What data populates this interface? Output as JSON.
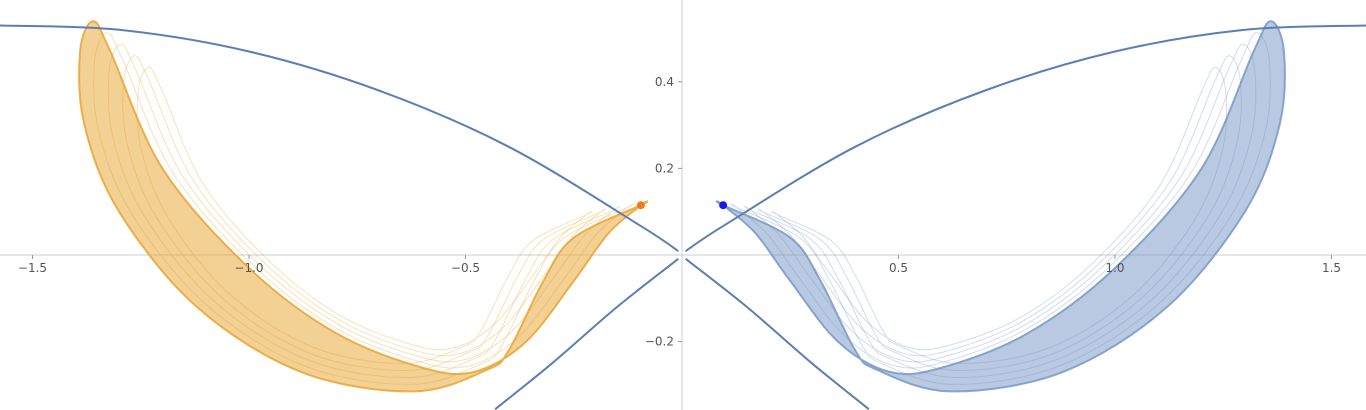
{
  "chart_data": {
    "type": "line",
    "title": "",
    "xlabel": "",
    "ylabel": "",
    "xlim": [
      -1.58,
      1.58
    ],
    "ylim": [
      -0.355,
      0.54
    ],
    "grid": false,
    "legend": "none",
    "x_ticks": [
      {
        "value": -1.5,
        "label": "−1.5"
      },
      {
        "value": -1.0,
        "label": "−1.0"
      },
      {
        "value": -0.5,
        "label": "−0.5"
      },
      {
        "value": 0.5,
        "label": "0.5"
      },
      {
        "value": 1.0,
        "label": "1.0"
      },
      {
        "value": 1.5,
        "label": "1.5"
      }
    ],
    "y_ticks": [
      {
        "value": 0.4,
        "label": "0.4"
      },
      {
        "value": 0.2,
        "label": "0.2"
      },
      {
        "value": -0.2,
        "label": "−0.2"
      }
    ],
    "colors": {
      "curve": "#5b7fb5",
      "left_band": "#e9a93a",
      "right_band": "#7e9cc8",
      "left_point": "#f07a1a",
      "right_point": "#1a1ae6",
      "axis": "#cccccc"
    },
    "boundary_curves": [
      {
        "side": "left",
        "x": [
          -1.58,
          -1.3,
          -1.0,
          -0.7,
          -0.4,
          -0.1,
          -0.01
        ],
        "y": [
          0.53,
          0.52,
          0.47,
          0.38,
          0.25,
          0.07,
          0.01
        ]
      },
      {
        "side": "right",
        "x": [
          0.01,
          0.1,
          0.4,
          0.7,
          1.0,
          1.3,
          1.58
        ],
        "y": [
          0.01,
          0.07,
          0.25,
          0.38,
          0.47,
          0.52,
          0.53
        ]
      },
      {
        "side": "left-lower",
        "x": [
          -0.43,
          -0.3,
          -0.15,
          -0.01
        ],
        "y": [
          -0.355,
          -0.25,
          -0.12,
          -0.01
        ]
      },
      {
        "side": "right-lower",
        "x": [
          0.01,
          0.15,
          0.3,
          0.43
        ],
        "y": [
          -0.01,
          -0.12,
          -0.25,
          -0.355
        ]
      }
    ],
    "series": [
      {
        "side": "left",
        "x": [
          -0.095,
          -0.25,
          -0.32,
          -0.4,
          -0.45,
          -0.62,
          -0.88,
          -1.12,
          -1.3,
          -1.38,
          -1.39,
          -1.36,
          -1.32,
          -1.2,
          -1.0,
          -0.8,
          -0.6,
          -0.48,
          -0.36,
          -0.25,
          -0.17,
          -0.095
        ],
        "y": [
          0.115,
          0.04,
          -0.06,
          -0.22,
          -0.265,
          -0.315,
          -0.27,
          -0.12,
          0.1,
          0.3,
          0.47,
          0.54,
          0.47,
          0.2,
          -0.03,
          -0.18,
          -0.26,
          -0.27,
          -0.2,
          -0.06,
          0.05,
          0.115
        ]
      },
      {
        "side": "right",
        "x": [
          0.095,
          0.25,
          0.32,
          0.4,
          0.45,
          0.62,
          0.88,
          1.12,
          1.3,
          1.38,
          1.39,
          1.36,
          1.32,
          1.2,
          1.0,
          0.8,
          0.6,
          0.48,
          0.36,
          0.25,
          0.17,
          0.095
        ],
        "y": [
          0.115,
          0.04,
          -0.06,
          -0.22,
          -0.265,
          -0.315,
          -0.27,
          -0.12,
          0.1,
          0.3,
          0.47,
          0.54,
          0.47,
          0.2,
          -0.03,
          -0.18,
          -0.26,
          -0.27,
          -0.2,
          -0.06,
          0.05,
          0.115
        ]
      }
    ],
    "points": [
      {
        "side": "left",
        "x": -0.095,
        "y": 0.115
      },
      {
        "side": "right",
        "x": 0.095,
        "y": 0.115
      }
    ]
  }
}
